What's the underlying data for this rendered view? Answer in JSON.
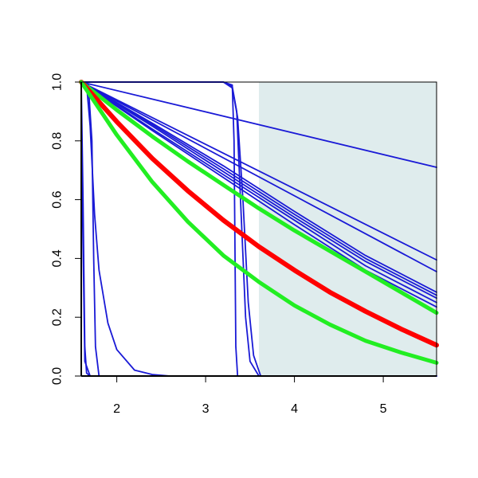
{
  "chart_data": {
    "type": "line",
    "xlim": [
      1.6,
      5.6
    ],
    "ylim": [
      0.0,
      1.0
    ],
    "x_ticks": [
      2,
      3,
      4,
      5
    ],
    "y_ticks": [
      0.0,
      0.2,
      0.4,
      0.6,
      0.8,
      1.0
    ],
    "x_tick_labels": [
      "2",
      "3",
      "4",
      "5"
    ],
    "y_tick_labels": [
      "0.0",
      "0.2",
      "0.4",
      "0.6",
      "0.8",
      "1.0"
    ],
    "grid": false,
    "shaded_region": {
      "x": [
        3.6,
        5.6
      ],
      "y": [
        0.0,
        1.0
      ],
      "color": "#dfeced"
    },
    "colors": {
      "blue": "#1a1ad6",
      "red": "#ff0000",
      "green": "#22ee22"
    },
    "series": [
      {
        "kind": "blue",
        "x": [
          1.6,
          5.6
        ],
        "y": [
          1.0,
          0.71
        ]
      },
      {
        "kind": "blue",
        "x": [
          1.6,
          5.6
        ],
        "y": [
          1.0,
          0.395
        ]
      },
      {
        "kind": "blue",
        "x": [
          1.6,
          5.6
        ],
        "y": [
          1.0,
          0.355
        ]
      },
      {
        "kind": "blue",
        "x": [
          1.6,
          2.4,
          3.2,
          4.0,
          4.8,
          5.6
        ],
        "y": [
          1.0,
          0.86,
          0.715,
          0.56,
          0.41,
          0.285
        ]
      },
      {
        "kind": "blue",
        "x": [
          1.6,
          2.4,
          3.2,
          4.0,
          4.8,
          5.6
        ],
        "y": [
          1.0,
          0.855,
          0.705,
          0.55,
          0.4,
          0.275
        ]
      },
      {
        "kind": "blue",
        "x": [
          1.6,
          2.4,
          3.2,
          4.0,
          4.8,
          5.6
        ],
        "y": [
          1.0,
          0.85,
          0.695,
          0.54,
          0.39,
          0.265
        ]
      },
      {
        "kind": "blue",
        "x": [
          1.6,
          2.4,
          3.2,
          4.0,
          4.8,
          5.6
        ],
        "y": [
          1.0,
          0.84,
          0.685,
          0.53,
          0.375,
          0.25
        ]
      },
      {
        "kind": "blue",
        "x": [
          1.6,
          2.4,
          3.2,
          4.0,
          4.8,
          5.6
        ],
        "y": [
          1.0,
          0.835,
          0.675,
          0.515,
          0.36,
          0.235
        ]
      },
      {
        "kind": "blue",
        "x": [
          1.6,
          1.62,
          1.64,
          1.66,
          1.7
        ],
        "y": [
          1.0,
          0.6,
          0.1,
          0.01,
          0.0
        ]
      },
      {
        "kind": "blue",
        "x": [
          1.6,
          1.62,
          1.64,
          1.7,
          5.6
        ],
        "y": [
          0.88,
          0.45,
          0.05,
          0.0,
          0.0
        ]
      },
      {
        "kind": "blue",
        "x": [
          1.6,
          1.68,
          1.72,
          1.74,
          1.76,
          1.8,
          5.6
        ],
        "y": [
          1.0,
          0.99,
          0.8,
          0.4,
          0.1,
          0.0,
          0.0
        ]
      },
      {
        "kind": "blue",
        "x": [
          1.6,
          1.66,
          1.7,
          1.75,
          1.8,
          1.9,
          2.0,
          2.2,
          2.4,
          2.6,
          5.6
        ],
        "y": [
          1.0,
          0.99,
          0.85,
          0.55,
          0.36,
          0.18,
          0.09,
          0.02,
          0.005,
          0.0,
          0.0
        ]
      },
      {
        "kind": "blue",
        "x": [
          1.6,
          3.2,
          3.3,
          3.32,
          3.34,
          3.36,
          3.4,
          5.6
        ],
        "y": [
          1.0,
          1.0,
          0.99,
          0.8,
          0.1,
          0.0,
          0.0,
          0.0
        ]
      },
      {
        "kind": "blue",
        "x": [
          1.6,
          3.2,
          3.3,
          3.35,
          3.4,
          3.45,
          3.5,
          3.6,
          5.6
        ],
        "y": [
          1.0,
          1.0,
          0.985,
          0.9,
          0.55,
          0.2,
          0.05,
          0.0,
          0.0
        ]
      },
      {
        "kind": "blue",
        "x": [
          1.6,
          3.2,
          3.3,
          3.36,
          3.42,
          3.48,
          3.54,
          3.62,
          5.6
        ],
        "y": [
          1.0,
          1.0,
          0.98,
          0.88,
          0.6,
          0.25,
          0.07,
          0.0,
          0.0
        ]
      },
      {
        "kind": "green",
        "x": [
          1.6,
          2.0,
          2.4,
          2.8,
          3.2,
          3.6,
          4.0,
          4.4,
          4.8,
          5.2,
          5.6
        ],
        "y": [
          1.0,
          0.905,
          0.815,
          0.73,
          0.65,
          0.57,
          0.495,
          0.425,
          0.355,
          0.285,
          0.215
        ]
      },
      {
        "kind": "red",
        "x": [
          1.6,
          2.0,
          2.4,
          2.8,
          3.2,
          3.6,
          4.0,
          4.4,
          4.8,
          5.2,
          5.6
        ],
        "y": [
          1.0,
          0.865,
          0.74,
          0.63,
          0.53,
          0.44,
          0.36,
          0.285,
          0.22,
          0.16,
          0.105
        ]
      },
      {
        "kind": "green",
        "x": [
          1.6,
          2.0,
          2.4,
          2.8,
          3.2,
          3.6,
          4.0,
          4.4,
          4.8,
          5.2,
          5.6
        ],
        "y": [
          1.0,
          0.82,
          0.66,
          0.525,
          0.41,
          0.32,
          0.24,
          0.175,
          0.12,
          0.08,
          0.045
        ]
      }
    ]
  }
}
